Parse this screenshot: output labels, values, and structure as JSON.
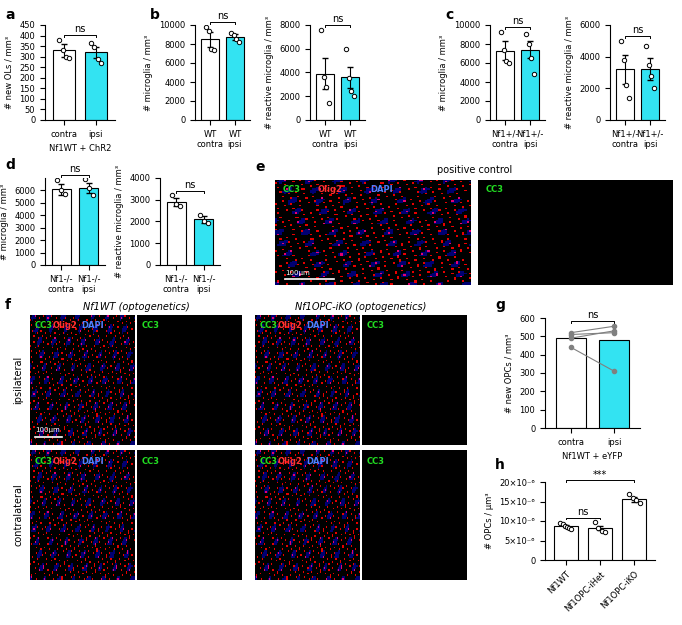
{
  "chart_data": [
    {
      "panel": "a",
      "type": "bar",
      "categories": [
        "contra",
        "ipsi"
      ],
      "xlabel": "Nf1WT + ChR2",
      "ylabel": "# new OLs / mm³",
      "values": [
        330,
        320
      ],
      "errors": [
        30,
        28
      ],
      "points": [
        [
          380,
          330,
          300,
          295
        ],
        [
          365,
          345,
          290,
          270
        ]
      ],
      "colors": [
        "#ffffff",
        "#33e3f2"
      ],
      "ylim": [
        0,
        450
      ],
      "yticks": [
        0,
        50,
        100,
        150,
        200,
        250,
        300,
        350,
        400,
        450
      ],
      "comparisons": [
        {
          "pair": [
            0,
            1
          ],
          "text": "ns"
        }
      ]
    },
    {
      "panel": "b",
      "type": "bar",
      "categories": [
        "WT\ncontra",
        "WT\nipsi"
      ],
      "ylabel": "# microglia / mm³",
      "values": [
        8500,
        8700
      ],
      "errors": [
        800,
        300
      ],
      "points": [
        [
          9800,
          9400,
          7500,
          7400
        ],
        [
          9200,
          8900,
          8500,
          8200
        ]
      ],
      "colors": [
        "#ffffff",
        "#33e3f2"
      ],
      "ylim": [
        0,
        10000
      ],
      "yticks": [
        0,
        2000,
        4000,
        6000,
        8000,
        10000
      ],
      "comparisons": [
        {
          "pair": [
            0,
            1
          ],
          "text": "ns"
        }
      ]
    },
    {
      "type": "bar",
      "categories": [
        "WT\ncontra",
        "WT\nipsi"
      ],
      "ylabel": "# reactive microglia / mm³",
      "values": [
        3900,
        3600
      ],
      "errors": [
        1300,
        900
      ],
      "points": [
        [
          7600,
          3600,
          2800,
          1400
        ],
        [
          6000,
          3500,
          2400,
          2000
        ]
      ],
      "colors": [
        "#ffffff",
        "#33e3f2"
      ],
      "ylim": [
        0,
        8000
      ],
      "yticks": [
        0,
        2000,
        4000,
        6000,
        8000
      ],
      "comparisons": [
        {
          "pair": [
            0,
            1
          ],
          "text": "ns"
        }
      ]
    },
    {
      "panel": "c",
      "type": "bar",
      "categories": [
        "Nf1+/-\ncontra",
        "Nf1+/-\nipsi"
      ],
      "ylabel": "# microglia / mm³",
      "values": [
        7300,
        7400
      ],
      "errors": [
        1000,
        900
      ],
      "points": [
        [
          9300,
          7400,
          6200,
          6000
        ],
        [
          9000,
          8000,
          6500,
          4800
        ]
      ],
      "colors": [
        "#ffffff",
        "#33e3f2"
      ],
      "ylim": [
        0,
        10000
      ],
      "yticks": [
        0,
        2000,
        4000,
        6000,
        8000,
        10000
      ],
      "comparisons": [
        {
          "pair": [
            0,
            1
          ],
          "text": "ns"
        }
      ]
    },
    {
      "type": "bar",
      "categories": [
        "Nf1+/-\ncontra",
        "Nf1+/-\nipsi"
      ],
      "ylabel": "# reactive microglia / mm³",
      "values": [
        3200,
        3200
      ],
      "errors": [
        900,
        700
      ],
      "points": [
        [
          5000,
          3800,
          2200,
          1400
        ],
        [
          4700,
          3500,
          2800,
          2000
        ]
      ],
      "colors": [
        "#ffffff",
        "#33e3f2"
      ],
      "ylim": [
        0,
        6000
      ],
      "yticks": [
        0,
        2000,
        4000,
        6000
      ],
      "comparisons": [
        {
          "pair": [
            0,
            1
          ],
          "text": "ns"
        }
      ]
    },
    {
      "panel": "d",
      "type": "bar",
      "categories": [
        "Nf1-/-\ncontra",
        "Nf1-/-\nipsi"
      ],
      "ylabel": "# microglia / mm³",
      "values": [
        6100,
        6200
      ],
      "errors": [
        450,
        400
      ],
      "points": [
        [
          6800,
          6000,
          5700
        ],
        [
          6900,
          6200,
          5600
        ]
      ],
      "colors": [
        "#ffffff",
        "#33e3f2"
      ],
      "ylim": [
        0,
        7000
      ],
      "yticks": [
        0,
        1000,
        2000,
        3000,
        4000,
        5000,
        6000
      ],
      "comparisons": [
        {
          "pair": [
            0,
            1
          ],
          "text": "ns"
        }
      ]
    },
    {
      "type": "bar",
      "categories": [
        "Nf1-/-\ncontra",
        "Nf1-/-\nipsi"
      ],
      "ylabel": "# reactive microglia / mm³",
      "values": [
        2900,
        2100
      ],
      "errors": [
        200,
        150
      ],
      "points": [
        [
          3200,
          2800,
          2700
        ],
        [
          2300,
          2000,
          1950
        ]
      ],
      "colors": [
        "#ffffff",
        "#33e3f2"
      ],
      "ylim": [
        0,
        4000
      ],
      "yticks": [
        0,
        1000,
        2000,
        3000,
        4000
      ],
      "comparisons": [
        {
          "pair": [
            0,
            1
          ],
          "text": "ns"
        }
      ]
    },
    {
      "panel": "e",
      "type": "image",
      "title": "positive control",
      "scale_bar": "100µm",
      "images": [
        {
          "channels": [
            {
              "text": "CC3",
              "color": "#22dd22"
            },
            {
              "text": "Olig2",
              "color": "#ff3333"
            },
            {
              "text": "DAPI",
              "color": "#4f7fff"
            }
          ]
        },
        {
          "channels": [
            {
              "text": "CC3",
              "color": "#22dd22"
            }
          ]
        }
      ]
    },
    {
      "panel": "f",
      "type": "image",
      "scale_bar": "100µm",
      "columns": [
        "Nf1WT (optogenetics)",
        "Nf1OPC-iKO (optogenetics)"
      ],
      "rows": [
        "ipsilateral",
        "contralateral"
      ],
      "images": [
        {
          "channels": [
            {
              "text": "CC3",
              "color": "#22dd22"
            },
            {
              "text": "Olig2",
              "color": "#ff3333"
            },
            {
              "text": "DAPI",
              "color": "#4f7fff"
            }
          ]
        },
        {
          "channels": [
            {
              "text": "CC3",
              "color": "#22dd22"
            }
          ]
        }
      ]
    },
    {
      "panel": "g",
      "type": "paired",
      "categories": [
        "contra",
        "ipsi"
      ],
      "xlabel": "Nf1WT + eYFP",
      "ylabel": "# new OPCs / mm³",
      "values": [
        490,
        480
      ],
      "points": [
        [
          520,
          510,
          490,
          440
        ],
        [
          555,
          520,
          530,
          310
        ]
      ],
      "colors": [
        "#ffffff",
        "#33e3f2"
      ],
      "ylim": [
        0,
        600
      ],
      "yticks": [
        0,
        100,
        200,
        300,
        400,
        500,
        600
      ],
      "comparisons": [
        {
          "pair": [
            0,
            1
          ],
          "text": "ns"
        }
      ]
    },
    {
      "panel": "h",
      "type": "bar",
      "categories": [
        "Nf1WT",
        "Nf1OPC-iHet",
        "Nf1OPC-iKO"
      ],
      "ylabel": "# OPCs / µm³",
      "values": [
        8.8e-06,
        8.2e-06,
        1.56e-05
      ],
      "errors": [
        3e-07,
        6e-07,
        6e-07
      ],
      "points": [
        [
          9.5e-06,
          9.2e-06,
          8.8e-06,
          8.5e-06,
          8.3e-06,
          8e-06
        ],
        [
          9.8e-06,
          8.3e-06,
          7.5e-06,
          7.2e-06
        ],
        [
          1.7e-05,
          1.6e-05,
          1.55e-05,
          1.45e-05
        ]
      ],
      "colors": [
        "#ffffff",
        "#ffffff",
        "#ffffff"
      ],
      "ylim": [
        0,
        2e-05
      ],
      "yticks": [
        0,
        {
          "value": 5e-06,
          "label": "5×10⁻⁶"
        },
        {
          "value": 1e-05,
          "label": "10×10⁻⁶"
        },
        {
          "value": 1.5e-05,
          "label": "15×10⁻⁶"
        },
        {
          "value": 2e-05,
          "label": "20×10⁻⁶"
        }
      ],
      "comparisons": [
        {
          "pair": [
            0,
            1
          ],
          "text": "ns"
        },
        {
          "pair": [
            0,
            2
          ],
          "text": "***"
        }
      ]
    }
  ]
}
